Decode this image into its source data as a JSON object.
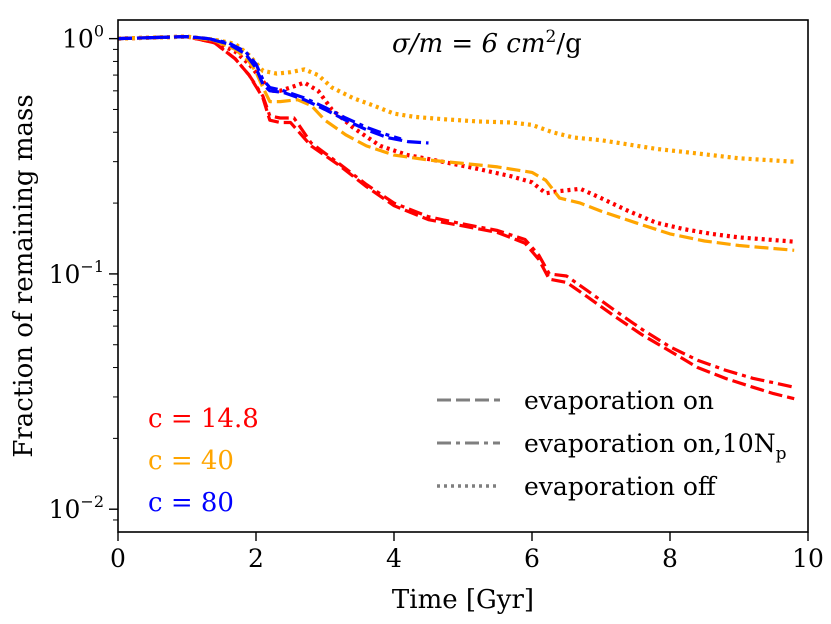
{
  "chart_data": {
    "type": "line",
    "title": "",
    "xlabel": "Time [Gyr]",
    "ylabel": "Fraction of remaining mass",
    "xlim": [
      0,
      10
    ],
    "ylim": [
      0.008,
      1.2
    ],
    "yscale": "log",
    "grid": false,
    "x_ticks": [
      0,
      2,
      4,
      6,
      8,
      10
    ],
    "x_tick_labels": [
      "0",
      "2",
      "4",
      "6",
      "8",
      "10"
    ],
    "y_ticks": [
      1,
      0.1,
      0.01
    ],
    "y_tick_labels": [
      {
        "base": "10",
        "exp": "0"
      },
      {
        "base": "10",
        "exp": "−1"
      },
      {
        "base": "10",
        "exp": "−2"
      }
    ],
    "annotation": {
      "lhs": "σ/m = 6 cm",
      "exp": "2",
      "rhs": "/g"
    },
    "concentration_labels": [
      {
        "text": "c = 14.8",
        "color": "#ff0000"
      },
      {
        "text": "c = 40",
        "color": "#ffa500"
      },
      {
        "text": "c = 80",
        "color": "#0000ff"
      }
    ],
    "legend": {
      "position": "lower-right",
      "entries": [
        {
          "label": "evaporation on",
          "style": "dashed"
        },
        {
          "label": "evaporation on,10N",
          "sub": "p",
          "style": "dashdot"
        },
        {
          "label": "evaporation off",
          "style": "dotted"
        }
      ]
    },
    "series": [
      {
        "name": "c=14.8 evaporation on",
        "color": "#ff0000",
        "style": "dashed",
        "x": [
          0,
          0.5,
          1.0,
          1.4,
          1.7,
          1.9,
          2.1,
          2.2,
          2.35,
          2.5,
          2.8,
          3.2,
          3.6,
          4.0,
          4.5,
          5.0,
          5.5,
          5.9,
          6.1,
          6.25,
          6.5,
          6.8,
          7.2,
          7.6,
          8.0,
          8.4,
          8.8,
          9.2,
          9.5,
          9.8
        ],
        "y": [
          1.0,
          1.01,
          1.02,
          0.96,
          0.82,
          0.7,
          0.56,
          0.45,
          0.44,
          0.44,
          0.35,
          0.29,
          0.235,
          0.195,
          0.17,
          0.16,
          0.15,
          0.135,
          0.115,
          0.095,
          0.092,
          0.08,
          0.066,
          0.055,
          0.047,
          0.04,
          0.036,
          0.033,
          0.031,
          0.0295
        ]
      },
      {
        "name": "c=14.8 evaporation on, 10Np",
        "color": "#ff0000",
        "style": "dashdot",
        "x": [
          0,
          0.5,
          1.0,
          1.4,
          1.7,
          1.9,
          2.1,
          2.2,
          2.35,
          2.55,
          2.8,
          3.2,
          3.6,
          4.0,
          4.5,
          5.0,
          5.5,
          5.9,
          6.1,
          6.25,
          6.5,
          6.8,
          7.2,
          7.6,
          8.0,
          8.4,
          8.8,
          9.2,
          9.5,
          9.8
        ],
        "y": [
          1.0,
          1.01,
          1.02,
          0.96,
          0.82,
          0.7,
          0.57,
          0.47,
          0.46,
          0.46,
          0.36,
          0.295,
          0.24,
          0.2,
          0.175,
          0.163,
          0.153,
          0.14,
          0.12,
          0.1,
          0.098,
          0.085,
          0.07,
          0.058,
          0.049,
          0.043,
          0.039,
          0.036,
          0.0345,
          0.033
        ]
      },
      {
        "name": "c=14.8 evaporation off",
        "color": "#ff0000",
        "style": "dotted",
        "x": [
          0,
          0.5,
          1.0,
          1.4,
          1.7,
          1.9,
          2.1,
          2.2,
          2.35,
          2.5,
          2.7,
          2.9,
          3.1,
          3.4,
          3.8,
          4.2,
          4.7,
          5.2,
          5.7,
          6.0,
          6.2,
          6.4,
          6.7,
          7.0,
          7.4,
          7.8,
          8.2,
          8.6,
          9.0,
          9.4,
          9.8
        ],
        "y": [
          1.0,
          1.01,
          1.02,
          0.97,
          0.88,
          0.78,
          0.66,
          0.6,
          0.6,
          0.62,
          0.65,
          0.6,
          0.5,
          0.42,
          0.35,
          0.32,
          0.3,
          0.28,
          0.26,
          0.245,
          0.22,
          0.225,
          0.23,
          0.21,
          0.185,
          0.165,
          0.155,
          0.148,
          0.143,
          0.14,
          0.137
        ]
      },
      {
        "name": "c=40 evaporation on",
        "color": "#ffa500",
        "style": "dashed",
        "x": [
          0,
          0.5,
          1.0,
          1.4,
          1.7,
          1.9,
          2.0,
          2.1,
          2.2,
          2.35,
          2.6,
          2.8,
          3.0,
          3.3,
          3.6,
          4.0,
          4.5,
          5.0,
          5.5,
          6.0,
          6.2,
          6.4,
          6.7,
          7.0,
          7.5,
          8.0,
          8.5,
          9.0,
          9.4,
          9.8
        ],
        "y": [
          1.0,
          1.01,
          1.02,
          0.98,
          0.9,
          0.8,
          0.72,
          0.62,
          0.54,
          0.54,
          0.55,
          0.52,
          0.45,
          0.39,
          0.35,
          0.32,
          0.305,
          0.295,
          0.285,
          0.27,
          0.25,
          0.21,
          0.2,
          0.185,
          0.165,
          0.148,
          0.138,
          0.132,
          0.129,
          0.126
        ]
      },
      {
        "name": "c=40 evaporation off",
        "color": "#ffa500",
        "style": "dotted",
        "x": [
          0,
          0.5,
          1.0,
          1.4,
          1.7,
          1.9,
          2.1,
          2.3,
          2.5,
          2.7,
          2.9,
          3.1,
          3.4,
          3.7,
          4.0,
          4.3,
          4.7,
          5.2,
          5.7,
          6.0,
          6.3,
          6.6,
          7.0,
          7.4,
          7.8,
          8.2,
          8.6,
          9.0,
          9.4,
          9.8
        ],
        "y": [
          1.0,
          1.01,
          1.02,
          0.99,
          0.95,
          0.85,
          0.73,
          0.71,
          0.72,
          0.74,
          0.7,
          0.62,
          0.56,
          0.52,
          0.48,
          0.465,
          0.455,
          0.445,
          0.44,
          0.43,
          0.4,
          0.38,
          0.37,
          0.355,
          0.34,
          0.33,
          0.32,
          0.31,
          0.305,
          0.3
        ]
      },
      {
        "name": "c=80 evaporation on",
        "color": "#0000ff",
        "style": "dashed",
        "x": [
          0,
          0.5,
          1.0,
          1.3,
          1.6,
          1.85,
          2.0,
          2.1,
          2.2,
          2.4,
          2.7,
          3.0,
          3.3,
          3.6,
          3.9,
          4.2,
          4.5
        ],
        "y": [
          1.0,
          1.01,
          1.02,
          1.0,
          0.95,
          0.86,
          0.75,
          0.64,
          0.6,
          0.59,
          0.55,
          0.5,
          0.45,
          0.41,
          0.38,
          0.365,
          0.36
        ]
      },
      {
        "name": "c=80 evaporation on, 10Np",
        "color": "#0000ff",
        "style": "dashdot",
        "x": [
          0,
          0.5,
          1.0,
          1.3,
          1.6,
          1.85,
          2.0,
          2.1,
          2.2,
          2.4,
          2.7,
          3.0,
          3.3,
          3.6,
          3.9,
          4.1
        ],
        "y": [
          1.0,
          1.01,
          1.02,
          1.0,
          0.96,
          0.88,
          0.78,
          0.67,
          0.62,
          0.6,
          0.56,
          0.51,
          0.46,
          0.42,
          0.39,
          0.375
        ]
      }
    ]
  }
}
